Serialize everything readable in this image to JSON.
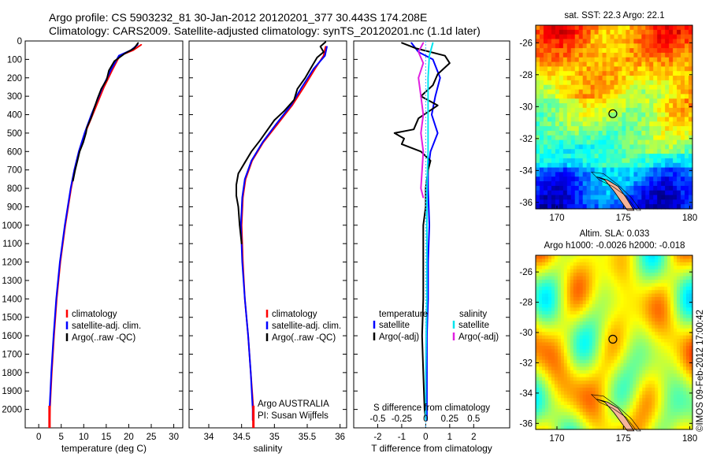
{
  "header": {
    "line1": "Argo profile: CS 5903232_81 30-Jan-2012 20120201_377 30.443S 174.208E",
    "line2": "Climatology: CARS2009. Satellite-adjusted climatology: synTS_20120201.nc (1.1d later)"
  },
  "colors": {
    "climatology": "#ff0000",
    "satellite": "#0000ff",
    "argo": "#000000",
    "sat_salinity": "#00e5ee",
    "argo_adj_salinity": "#e020e0",
    "land": "#f5b49a"
  },
  "chart_data": [
    {
      "id": "temperature",
      "type": "line",
      "xlabel": "temperature (deg C)",
      "ylabel": "",
      "xlim": [
        -3,
        32
      ],
      "ylim": [
        2100,
        0
      ],
      "x_ticks": [
        0,
        5,
        10,
        15,
        20,
        25,
        30
      ],
      "y_ticks": [
        0,
        100,
        200,
        300,
        400,
        500,
        600,
        700,
        800,
        900,
        1000,
        1100,
        1200,
        1300,
        1400,
        1500,
        1600,
        1700,
        1800,
        1900,
        2000
      ],
      "legend": [
        "climatology",
        "satellite-adj. clim.",
        "Argo(..raw -QC)"
      ],
      "series": [
        {
          "name": "climatology",
          "color": "#ff0000",
          "depth": [
            20,
            50,
            80,
            150,
            250,
            400,
            500,
            600,
            700,
            800,
            1000,
            1200,
            1400,
            1600,
            1800,
            2000,
            2060
          ],
          "values": [
            22.8,
            21,
            18,
            16.5,
            14.5,
            12,
            10.3,
            9,
            8,
            7.2,
            5.9,
            4.8,
            4.0,
            3.4,
            2.9,
            2.5,
            2.4
          ]
        },
        {
          "name": "satellite-adj. clim.",
          "color": "#0000ff",
          "depth": [
            20,
            50,
            80,
            150,
            250,
            400,
            500,
            600,
            700,
            800,
            1000,
            1200,
            1400,
            1600,
            1800,
            2000,
            2060
          ],
          "values": [
            22.0,
            20.5,
            17.8,
            16.2,
            14.2,
            11.7,
            10.2,
            8.9,
            7.9,
            7.1,
            5.8,
            4.7,
            3.9,
            3.3,
            2.8,
            2.4,
            2.35
          ]
        },
        {
          "name": "Argo(..raw -QC)",
          "color": "#000000",
          "depth": [
            10,
            40,
            70,
            110,
            160,
            210,
            260,
            310,
            360,
            420,
            470,
            500,
            550,
            600,
            650,
            700,
            760
          ],
          "values": [
            22.1,
            21.2,
            19,
            16.8,
            15.6,
            15.1,
            13.9,
            13.1,
            12.4,
            11.6,
            10.7,
            10.5,
            9.9,
            9.1,
            8.6,
            8.1,
            7.6
          ]
        }
      ]
    },
    {
      "id": "salinity",
      "type": "line",
      "xlabel": "salinity",
      "ylabel": "",
      "xlim": [
        33.7,
        36.1
      ],
      "ylim": [
        2100,
        0
      ],
      "x_ticks": [
        34,
        34.5,
        35,
        35.5,
        36
      ],
      "legend": [
        "climatology",
        "satellite-adj. clim.",
        "Argo(..raw -QC)"
      ],
      "annotation_line1": "Argo AUSTRALIA",
      "annotation_line2": "PI: Susan Wijffels",
      "series": [
        {
          "name": "climatology",
          "color": "#ff0000",
          "depth": [
            30,
            80,
            150,
            250,
            350,
            450,
            550,
            650,
            750,
            850,
            1000,
            1200,
            1400,
            1600,
            1800,
            2000,
            2060
          ],
          "values": [
            35.78,
            35.75,
            35.62,
            35.45,
            35.27,
            35.05,
            34.83,
            34.66,
            34.56,
            34.52,
            34.5,
            34.52,
            34.55,
            34.6,
            34.64,
            34.68,
            34.68
          ]
        },
        {
          "name": "satellite-adj. clim.",
          "color": "#0000ff",
          "depth": [
            30,
            80,
            150,
            250,
            350,
            450,
            550,
            650,
            750,
            850,
            1000,
            1200,
            1400,
            1600,
            1800,
            2000,
            2060
          ],
          "values": [
            35.8,
            35.77,
            35.6,
            35.42,
            35.25,
            35.03,
            34.82,
            34.65,
            34.55,
            34.51,
            34.49,
            34.51,
            34.55,
            34.6,
            34.64,
            34.67,
            34.67
          ]
        },
        {
          "name": "Argo(..raw -QC)",
          "color": "#000000",
          "depth": [
            5,
            30,
            60,
            90,
            150,
            200,
            260,
            320,
            380,
            430,
            480,
            540,
            600,
            660,
            720,
            780,
            840,
            900,
            1000,
            1100
          ],
          "values": [
            35.78,
            35.7,
            35.75,
            35.65,
            35.55,
            35.47,
            35.35,
            35.3,
            35.15,
            35.0,
            34.9,
            34.78,
            34.65,
            34.55,
            34.45,
            34.42,
            34.42,
            34.45,
            34.47,
            34.5
          ]
        }
      ]
    },
    {
      "id": "difference",
      "type": "line",
      "xlabel": "T difference from climatology",
      "xlabel_top": "S difference from climatology",
      "xlim": [
        -3,
        3.5
      ],
      "ylim": [
        2100,
        0
      ],
      "x_ticks": [
        -2,
        -1,
        0,
        1,
        2
      ],
      "x_ticks_top": [
        -0.5,
        -0.25,
        0,
        0.25,
        0.5
      ],
      "legend_headers": [
        "temperature",
        "salinity"
      ],
      "legend": [
        "satellite",
        "Argo(-adj)",
        "satellite",
        "Argo(-adj)"
      ],
      "series": [
        {
          "name": "satellite",
          "color": "#0000ff",
          "depth": [
            10,
            60,
            100,
            200,
            300,
            400,
            500,
            600,
            700,
            800,
            1000,
            1200,
            1400,
            1600,
            1800,
            2000,
            2060
          ],
          "values": [
            -0.6,
            -0.3,
            0.3,
            0.6,
            0.4,
            0.25,
            0.5,
            0.2,
            0.1,
            0.1,
            0.15,
            0.1,
            0.1,
            0.05,
            0.05,
            0.05,
            0.05
          ]
        },
        {
          "name": "Argo(-adj)",
          "color": "#000000",
          "depth": [
            10,
            40,
            80,
            120,
            180,
            240,
            300,
            350,
            420,
            480,
            500,
            530,
            560,
            600,
            650,
            700,
            800,
            900,
            1000,
            1200,
            1400,
            1600,
            1800,
            2000,
            2050
          ],
          "values": [
            -1.0,
            -0.4,
            0.8,
            1.0,
            0.5,
            0.3,
            -0.2,
            0.5,
            -0.3,
            -0.5,
            -1.3,
            -0.9,
            -1.0,
            -0.2,
            0.2,
            0.1,
            0,
            0,
            -0.1,
            -0.1,
            -0.1,
            -0.15,
            -0.1,
            -0.05,
            0
          ]
        },
        {
          "name": "satellite",
          "color": "#00e5ee",
          "depth": [
            10,
            80,
            200,
            400,
            600,
            800,
            1000,
            1200,
            1400,
            1600,
            1800,
            2000,
            2060
          ],
          "values": [
            0.3,
            0.15,
            0.1,
            0.1,
            0.1,
            0.05,
            0.05,
            0.05,
            0.05,
            0.02,
            0.0,
            0.0,
            0.0
          ]
        },
        {
          "name": "Argo(-adj)",
          "color": "#e020e0",
          "depth": [
            10,
            60,
            120,
            200,
            300,
            400,
            500,
            600,
            700,
            800,
            850
          ],
          "values": [
            -0.1,
            -0.3,
            -0.1,
            -0.3,
            -0.2,
            -0.1,
            -0.2,
            -0.1,
            -0.15,
            -0.2,
            -0.1
          ]
        }
      ]
    },
    {
      "id": "sst_map",
      "type": "heatmap",
      "title": "sat. SST: 22.3 Argo: 22.1",
      "x_ticks": [
        170,
        175,
        180
      ],
      "y_ticks": [
        -26,
        -28,
        -30,
        -32,
        -34,
        -36
      ],
      "xlim": [
        168.4,
        180.2
      ],
      "ylim": [
        -36.4,
        -24.9
      ],
      "argo_position": [
        174.208,
        -30.443
      ],
      "colormap": "jet"
    },
    {
      "id": "sla_map",
      "type": "heatmap",
      "title_line1": "Altim. SLA: 0.033",
      "title_line2": "Argo h1000: -0.0026 h2000: -0.018",
      "x_ticks": [
        170,
        175,
        180
      ],
      "y_ticks": [
        -26,
        -28,
        -30,
        -32,
        -34,
        -36
      ],
      "xlim": [
        168.4,
        180.2
      ],
      "ylim": [
        -36.4,
        -24.9
      ],
      "argo_position": [
        174.208,
        -30.443
      ],
      "colormap": "jet"
    }
  ],
  "stamp": "©IMOS 09-Feb-2012 17:00:42"
}
